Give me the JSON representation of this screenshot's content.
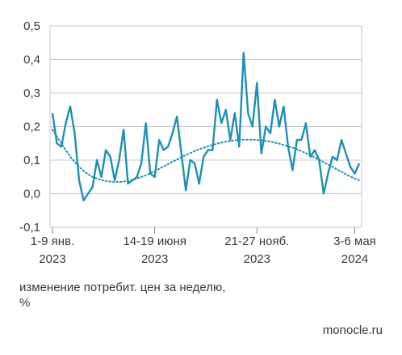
{
  "chart_data": {
    "type": "line",
    "ylim": [
      -0.1,
      0.5
    ],
    "y_ticks": [
      "-0,1",
      "0,0",
      "0,1",
      "0,2",
      "0,3",
      "0,4",
      "0,5"
    ],
    "y_tick_values": [
      -0.1,
      0.0,
      0.1,
      0.2,
      0.3,
      0.4,
      0.5
    ],
    "x_ticks": [
      {
        "label_1": "1-9 янв.",
        "label_2": "2023",
        "index": 0
      },
      {
        "label_1": "14-19 июня",
        "label_2": "2023",
        "index": 23
      },
      {
        "label_1": "21-27 нояб.",
        "label_2": "2023",
        "index": 46
      },
      {
        "label_1": "3-6 мая",
        "label_2": "2024",
        "index": 68
      }
    ],
    "grid": true,
    "colors": {
      "series": "#1f8fb5",
      "trend": "#1f8fb5",
      "grid": "#c8c8c8",
      "axis": "#8a8a8a"
    },
    "series": [
      {
        "values": [
          0.24,
          0.15,
          0.14,
          0.21,
          0.26,
          0.18,
          0.04,
          -0.02,
          0.0,
          0.02,
          0.1,
          0.05,
          0.13,
          0.11,
          0.04,
          0.1,
          0.19,
          0.03,
          0.04,
          0.05,
          0.09,
          0.21,
          0.06,
          0.05,
          0.16,
          0.13,
          0.14,
          0.18,
          0.23,
          0.12,
          0.01,
          0.1,
          0.09,
          0.03,
          0.11,
          0.13,
          0.13,
          0.28,
          0.21,
          0.25,
          0.16,
          0.24,
          0.14,
          0.42,
          0.24,
          0.2,
          0.33,
          0.12,
          0.2,
          0.18,
          0.28,
          0.2,
          0.26,
          0.14,
          0.07,
          0.16,
          0.16,
          0.21,
          0.11,
          0.13,
          0.1,
          0.0,
          0.06,
          0.11,
          0.1,
          0.16,
          0.12,
          0.08,
          0.06,
          0.09
        ]
      },
      {
        "style": "dotted",
        "values": [
          0.19,
          0.17,
          0.15,
          0.13,
          0.11,
          0.095,
          0.08,
          0.068,
          0.058,
          0.05,
          0.045,
          0.041,
          0.038,
          0.036,
          0.035,
          0.035,
          0.036,
          0.038,
          0.041,
          0.045,
          0.05,
          0.055,
          0.061,
          0.067,
          0.074,
          0.081,
          0.088,
          0.095,
          0.102,
          0.109,
          0.115,
          0.121,
          0.127,
          0.132,
          0.137,
          0.141,
          0.145,
          0.149,
          0.152,
          0.155,
          0.157,
          0.159,
          0.16,
          0.161,
          0.161,
          0.161,
          0.16,
          0.159,
          0.157,
          0.155,
          0.152,
          0.149,
          0.145,
          0.141,
          0.137,
          0.132,
          0.127,
          0.121,
          0.115,
          0.108,
          0.101,
          0.094,
          0.087,
          0.08,
          0.072,
          0.065,
          0.058,
          0.051,
          0.045,
          0.04
        ]
      }
    ]
  },
  "caption": {
    "line_1": "изменение потребит. цен за неделю,",
    "line_2": "%"
  },
  "source": "monocle.ru"
}
